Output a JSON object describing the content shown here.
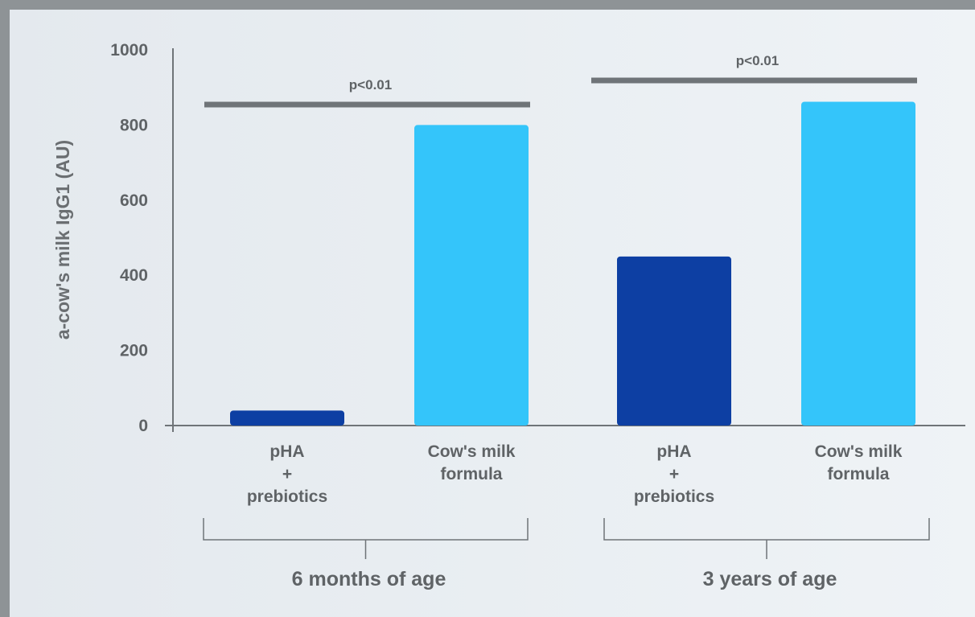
{
  "chart_data": {
    "type": "bar",
    "ylabel": "a-cow's milk IgG1 (AU)",
    "ylim": [
      0,
      1000
    ],
    "yticks": [
      0,
      200,
      400,
      600,
      800,
      1000
    ],
    "grid": false,
    "colors": {
      "pHA + prebiotics": "#0d3fa3",
      "Cow's milk formula": "#34c5fa"
    },
    "groups": [
      {
        "label": "6 months of age",
        "significance": "p<0.01",
        "bars": [
          {
            "category": [
              "pHA",
              "+",
              "prebiotics"
            ],
            "series": "pHA + prebiotics",
            "value": 40
          },
          {
            "category": [
              "Cow's milk",
              "formula"
            ],
            "series": "Cow's milk formula",
            "value": 800
          }
        ]
      },
      {
        "label": "3 years of age",
        "significance": "p<0.01",
        "bars": [
          {
            "category": [
              "pHA",
              "+",
              "prebiotics"
            ],
            "series": "pHA + prebiotics",
            "value": 450
          },
          {
            "category": [
              "Cow's milk",
              "formula"
            ],
            "series": "Cow's milk formula",
            "value": 862
          }
        ]
      }
    ]
  }
}
